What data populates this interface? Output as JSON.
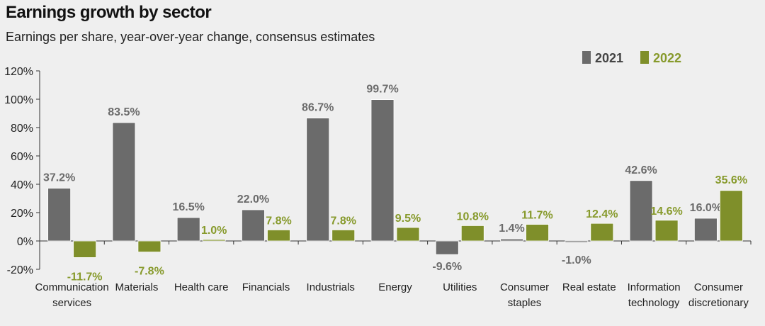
{
  "chart_data": {
    "type": "bar",
    "title": "Earnings growth by sector",
    "subtitle": "Earnings per share, year-over-year change, consensus estimates",
    "categories": [
      "Communication services",
      "Materials",
      "Health care",
      "Financials",
      "Industrials",
      "Energy",
      "Utilities",
      "Consumer staples",
      "Real estate",
      "Information technology",
      "Consumer discretionary"
    ],
    "category_lines": [
      [
        "Communication",
        "services"
      ],
      [
        "Materials"
      ],
      [
        "Health care"
      ],
      [
        "Financials"
      ],
      [
        "Industrials"
      ],
      [
        "Energy"
      ],
      [
        "Utilities"
      ],
      [
        "Consumer",
        "staples"
      ],
      [
        "Real estate"
      ],
      [
        "Information",
        "technology"
      ],
      [
        "Consumer",
        "discretionary"
      ]
    ],
    "series": [
      {
        "name": "2021",
        "color": "#6b6b6b",
        "label_color": "#6b6b6b",
        "values": [
          37.2,
          83.5,
          16.5,
          22.0,
          86.7,
          99.7,
          -9.6,
          1.4,
          -1.0,
          42.6,
          16.0
        ],
        "labels": [
          "37.2%",
          "83.5%",
          "16.5%",
          "22.0%",
          "86.7%",
          "99.7%",
          "-9.6%",
          "1.4%",
          "-1.0%",
          "42.6%",
          "16.0%"
        ]
      },
      {
        "name": "2022",
        "color": "#7f8f2a",
        "label_color": "#879a2c",
        "values": [
          -11.7,
          -7.8,
          1.0,
          7.8,
          7.8,
          9.5,
          10.8,
          11.7,
          12.4,
          14.6,
          35.6
        ],
        "labels": [
          "-11.7%",
          "-7.8%",
          "1.0%",
          "7.8%",
          "7.8%",
          "9.5%",
          "10.8%",
          "11.7%",
          "12.4%",
          "14.6%",
          "35.6%"
        ]
      }
    ],
    "ylim": [
      -20,
      120
    ],
    "yticks": [
      -20,
      0,
      20,
      40,
      60,
      80,
      100,
      120
    ],
    "ytick_labels": [
      "-20%",
      "0%",
      "20%",
      "40%",
      "60%",
      "80%",
      "100%",
      "120%"
    ],
    "grid": false,
    "legend_position": "top-right"
  }
}
